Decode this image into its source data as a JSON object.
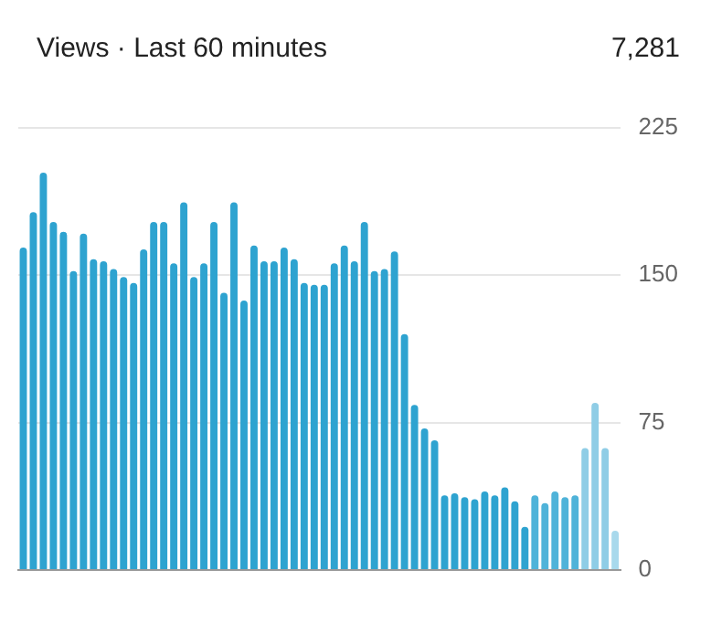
{
  "chart_data": {
    "type": "bar",
    "title": "Views · Last 60 minutes",
    "annotations": [
      "7,281"
    ],
    "categories": [
      null,
      null,
      null,
      null,
      null,
      null,
      null,
      null,
      null,
      null,
      null,
      null,
      null,
      null,
      null,
      null,
      null,
      null,
      null,
      null,
      null,
      null,
      null,
      null,
      null,
      null,
      null,
      null,
      null,
      null,
      null,
      null,
      null,
      null,
      null,
      null,
      null,
      null,
      null,
      null,
      null,
      null,
      null,
      null,
      null,
      null,
      null,
      null,
      null,
      null,
      null,
      null,
      null,
      null,
      null,
      null,
      null,
      null,
      null,
      null
    ],
    "values": [
      164,
      182,
      202,
      177,
      172,
      152,
      171,
      158,
      157,
      153,
      149,
      146,
      163,
      177,
      177,
      156,
      187,
      149,
      156,
      177,
      141,
      187,
      137,
      165,
      157,
      157,
      164,
      158,
      146,
      145,
      145,
      156,
      165,
      157,
      177,
      152,
      153,
      162,
      120,
      84,
      72,
      66,
      38,
      39,
      37,
      36,
      40,
      38,
      42,
      35,
      22,
      38,
      34,
      40,
      37,
      38,
      62,
      85,
      62,
      20
    ],
    "colors": [
      "#2ea3d0",
      "#2ea3d0",
      "#2ea3d0",
      "#2ea3d0",
      "#2ea3d0",
      "#2ea3d0",
      "#2ea3d0",
      "#2ea3d0",
      "#2ea3d0",
      "#2ea3d0",
      "#2ea3d0",
      "#2ea3d0",
      "#2ea3d0",
      "#2ea3d0",
      "#2ea3d0",
      "#2ea3d0",
      "#2ea3d0",
      "#2ea3d0",
      "#2ea3d0",
      "#2ea3d0",
      "#2ea3d0",
      "#2ea3d0",
      "#2ea3d0",
      "#2ea3d0",
      "#2ea3d0",
      "#2ea3d0",
      "#2ea3d0",
      "#2ea3d0",
      "#2ea3d0",
      "#2ea3d0",
      "#2ea3d0",
      "#2ea3d0",
      "#2ea3d0",
      "#2ea3d0",
      "#2ea3d0",
      "#2ea3d0",
      "#2ea3d0",
      "#2ea3d0",
      "#2ea3d0",
      "#2ea3d0",
      "#2ea3d0",
      "#2ea3d0",
      "#2ea3d0",
      "#2ea3d0",
      "#2ea3d0",
      "#2ea3d0",
      "#2ea3d0",
      "#2ea3d0",
      "#2ea3d0",
      "#2ea3d0",
      "#2ea3d0",
      "#4fb3d9",
      "#4fb3d9",
      "#4fb3d9",
      "#4fb3d9",
      "#4fb3d9",
      "#8fcde6",
      "#8fcde6",
      "#8fcde6",
      "#a8d9ec"
    ],
    "ylim": [
      0,
      225
    ],
    "yticks": [
      0,
      75,
      150,
      225
    ],
    "grid": "y",
    "tick_labels": "y"
  }
}
